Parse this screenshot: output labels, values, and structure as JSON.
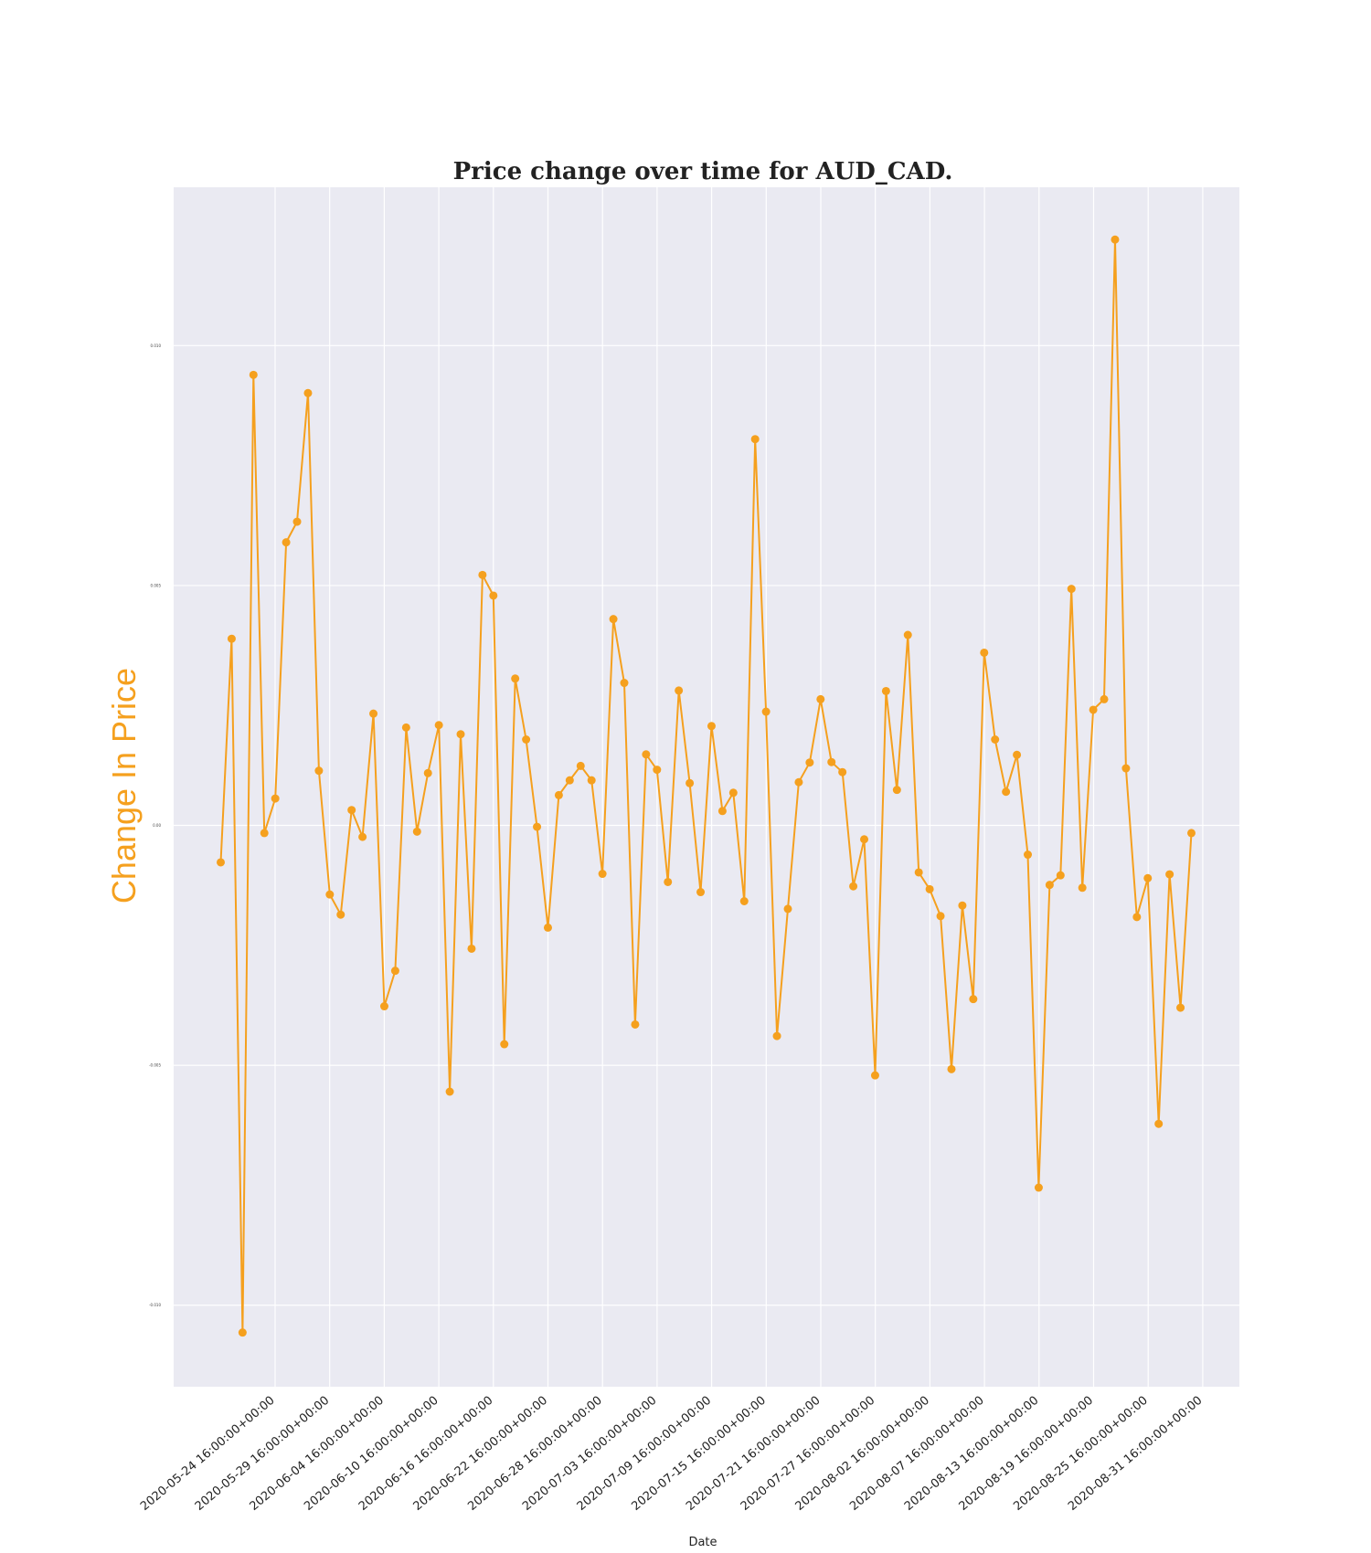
{
  "chart_data": {
    "type": "line",
    "title": "Price change over time for AUD_CAD.",
    "xlabel": "Date",
    "ylabel": "Change In Price",
    "grid": true,
    "colors": {
      "line": "#f5a01e",
      "background": "#eaeaf2",
      "grid": "#ffffff"
    },
    "ylim": [
      -0.0117,
      0.0133
    ],
    "ytick_values": [
      -0.01,
      -0.005,
      0.0,
      0.005,
      0.01
    ],
    "ytick_labels": [
      "-0.010",
      "-0.005",
      "0.00",
      "0.005",
      "0.010"
    ],
    "xtick_labels": [
      "2020-05-24 16:00:00+00:00",
      "2020-05-29 16:00:00+00:00",
      "2020-06-04 16:00:00+00:00",
      "2020-06-10 16:00:00+00:00",
      "2020-06-16 16:00:00+00:00",
      "2020-06-22 16:00:00+00:00",
      "2020-06-28 16:00:00+00:00",
      "2020-07-03 16:00:00+00:00",
      "2020-07-09 16:00:00+00:00",
      "2020-07-15 16:00:00+00:00",
      "2020-07-21 16:00:00+00:00",
      "2020-07-27 16:00:00+00:00",
      "2020-08-02 16:00:00+00:00",
      "2020-08-07 16:00:00+00:00",
      "2020-08-13 16:00:00+00:00",
      "2020-08-19 16:00:00+00:00",
      "2020-08-25 16:00:00+00:00",
      "2020-08-31 16:00:00+00:00"
    ],
    "values": [
      -0.00077,
      0.00389,
      -0.01057,
      0.00939,
      -0.00016,
      0.00056,
      0.0059,
      0.00633,
      0.00901,
      0.00114,
      -0.00144,
      -0.00186,
      0.00032,
      -0.00024,
      0.00233,
      -0.00377,
      -0.00303,
      0.00204,
      -0.00013,
      0.00109,
      0.00209,
      -0.00555,
      0.0019,
      -0.00257,
      0.00522,
      0.00479,
      -0.00456,
      0.00306,
      0.00179,
      -3e-05,
      -0.00213,
      0.00063,
      0.00094,
      0.00124,
      0.00094,
      -0.00101,
      0.0043,
      0.00297,
      -0.00415,
      0.00148,
      0.00116,
      -0.00118,
      0.00281,
      0.00088,
      -0.00139,
      0.00207,
      0.0003,
      0.00068,
      -0.00158,
      0.00805,
      0.00237,
      -0.00439,
      -0.00174,
      0.0009,
      0.00131,
      0.00263,
      0.00132,
      0.00111,
      -0.00127,
      -0.00029,
      -0.00521,
      0.0028,
      0.00074,
      0.00397,
      -0.00098,
      -0.00133,
      -0.00189,
      -0.00508,
      -0.00167,
      -0.00362,
      0.0036,
      0.00179,
      0.0007,
      0.00147,
      -0.00061,
      -0.00755,
      -0.00124,
      -0.00104,
      0.00493,
      -0.0013,
      0.00241,
      0.00263,
      0.01221,
      0.00119,
      -0.00191,
      -0.0011,
      -0.00622,
      -0.00102,
      -0.0038,
      -0.00016
    ]
  }
}
